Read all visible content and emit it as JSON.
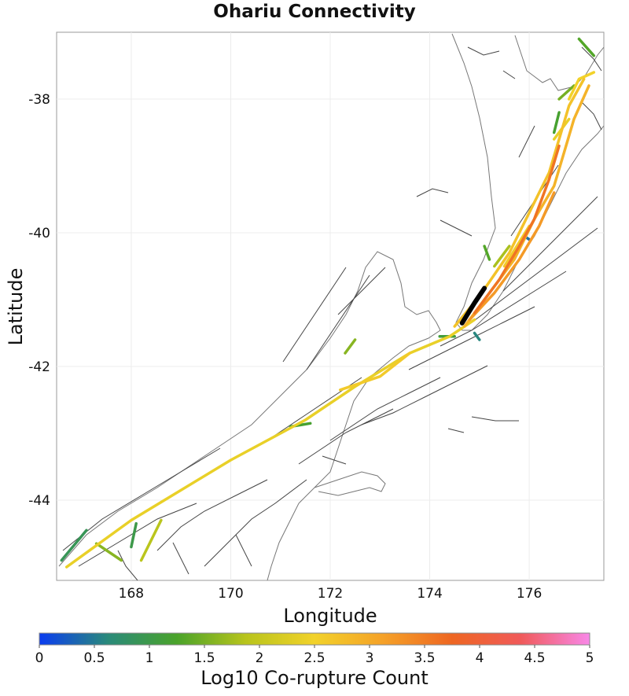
{
  "title": "Ohariu Connectivity",
  "axes": {
    "xlabel": "Longitude",
    "ylabel": "Latitude",
    "xlim": [
      166.5,
      177.5
    ],
    "ylim": [
      -45.2,
      -37.0
    ],
    "xticks": [
      "168",
      "170",
      "172",
      "174",
      "176"
    ],
    "yticks": [
      "-38",
      "-40",
      "-42",
      "-44"
    ]
  },
  "colorbar": {
    "label": "Log10 Co-rupture Count",
    "range": [
      0,
      5
    ],
    "ticks": [
      "0",
      "0.5",
      "1",
      "1.5",
      "2",
      "2.5",
      "3",
      "3.5",
      "4",
      "4.5",
      "5"
    ],
    "colors": [
      "#0a3cf0",
      "#2a8a7a",
      "#4aa32a",
      "#b8c41c",
      "#f2d22a",
      "#f5a128",
      "#ee6622",
      "#f05a5a",
      "#f888e8"
    ]
  },
  "chart_data": {
    "type": "map",
    "title": "Ohariu Connectivity",
    "xlabel": "Longitude",
    "ylabel": "Latitude",
    "source_fault": "Ohariu",
    "source_color": "#000000",
    "ruptures": [
      {
        "value": 2.4,
        "points": [
          [
            166.7,
            -45.0
          ],
          [
            168.0,
            -44.3
          ],
          [
            170.0,
            -43.4
          ],
          [
            171.5,
            -42.8
          ],
          [
            172.5,
            -42.3
          ],
          [
            173.6,
            -41.8
          ],
          [
            174.4,
            -41.55
          ],
          [
            174.9,
            -41.3
          ]
        ]
      },
      {
        "value": 2.6,
        "points": [
          [
            172.2,
            -42.35
          ],
          [
            173.0,
            -42.15
          ],
          [
            173.6,
            -41.8
          ]
        ]
      },
      {
        "value": 2.7,
        "points": [
          [
            174.5,
            -41.4
          ],
          [
            175.0,
            -40.95
          ],
          [
            175.6,
            -40.3
          ],
          [
            176.0,
            -39.7
          ],
          [
            176.4,
            -39.1
          ],
          [
            176.6,
            -38.6
          ],
          [
            176.8,
            -38.1
          ],
          [
            177.1,
            -37.7
          ]
        ]
      },
      {
        "value": 2.9,
        "points": [
          [
            174.7,
            -41.4
          ],
          [
            175.2,
            -40.9
          ],
          [
            175.7,
            -40.4
          ],
          [
            176.1,
            -39.8
          ],
          [
            176.5,
            -39.3
          ],
          [
            176.7,
            -38.8
          ],
          [
            176.9,
            -38.3
          ],
          [
            177.2,
            -37.8
          ]
        ]
      },
      {
        "value": 3.6,
        "points": [
          [
            174.9,
            -41.2
          ],
          [
            175.4,
            -40.7
          ],
          [
            175.8,
            -40.2
          ],
          [
            176.1,
            -39.8
          ],
          [
            176.4,
            -39.2
          ],
          [
            176.6,
            -38.7
          ]
        ]
      },
      {
        "value": 3.2,
        "points": [
          [
            174.8,
            -41.3
          ],
          [
            175.3,
            -40.9
          ],
          [
            175.8,
            -40.4
          ],
          [
            176.2,
            -39.9
          ],
          [
            176.5,
            -39.4
          ]
        ]
      },
      {
        "value": 2.5,
        "points": [
          [
            176.8,
            -38.0
          ],
          [
            177.0,
            -37.7
          ],
          [
            177.3,
            -37.6
          ]
        ]
      },
      {
        "value": 2.4,
        "points": [
          [
            176.5,
            -38.6
          ],
          [
            176.8,
            -38.3
          ]
        ]
      },
      {
        "value": 2.6,
        "points": [
          [
            175.5,
            -40.5
          ],
          [
            176.0,
            -39.9
          ]
        ]
      },
      {
        "value": 1.3,
        "points": [
          [
            177.0,
            -37.1
          ],
          [
            177.3,
            -37.35
          ]
        ]
      },
      {
        "value": 1.5,
        "points": [
          [
            176.6,
            -38.0
          ],
          [
            176.9,
            -37.8
          ]
        ]
      },
      {
        "value": 1.2,
        "points": [
          [
            176.6,
            -38.2
          ],
          [
            176.5,
            -38.5
          ]
        ]
      },
      {
        "value": 1.6,
        "points": [
          [
            167.3,
            -44.65
          ],
          [
            167.8,
            -44.9
          ]
        ]
      },
      {
        "value": 1.9,
        "points": [
          [
            168.6,
            -44.3
          ],
          [
            168.2,
            -44.9
          ]
        ]
      },
      {
        "value": 0.9,
        "points": [
          [
            166.6,
            -44.9
          ],
          [
            167.1,
            -44.45
          ]
        ]
      },
      {
        "value": 1.0,
        "points": [
          [
            168.1,
            -44.35
          ],
          [
            168.0,
            -44.7
          ]
        ]
      },
      {
        "value": 1.2,
        "points": [
          [
            171.2,
            -42.9
          ],
          [
            171.6,
            -42.85
          ]
        ]
      },
      {
        "value": 0.4,
        "points": [
          [
            175.9,
            -40.05
          ],
          [
            176.0,
            -40.1
          ]
        ]
      },
      {
        "value": 0.6,
        "points": [
          [
            174.9,
            -41.5
          ],
          [
            175.0,
            -41.6
          ]
        ]
      },
      {
        "value": 1.8,
        "points": [
          [
            175.3,
            -40.5
          ],
          [
            175.6,
            -40.2
          ]
        ]
      },
      {
        "value": 1.1,
        "points": [
          [
            174.2,
            -41.55
          ],
          [
            174.5,
            -41.55
          ]
        ]
      },
      {
        "value": 1.3,
        "points": [
          [
            175.1,
            -40.2
          ],
          [
            175.2,
            -40.4
          ]
        ]
      },
      {
        "value": 1.6,
        "points": [
          [
            172.3,
            -41.8
          ],
          [
            172.5,
            -41.6
          ]
        ]
      }
    ],
    "source_trace": [
      [
        174.65,
        -41.35
      ],
      [
        174.9,
        -41.05
      ],
      [
        175.1,
        -40.83
      ]
    ]
  }
}
